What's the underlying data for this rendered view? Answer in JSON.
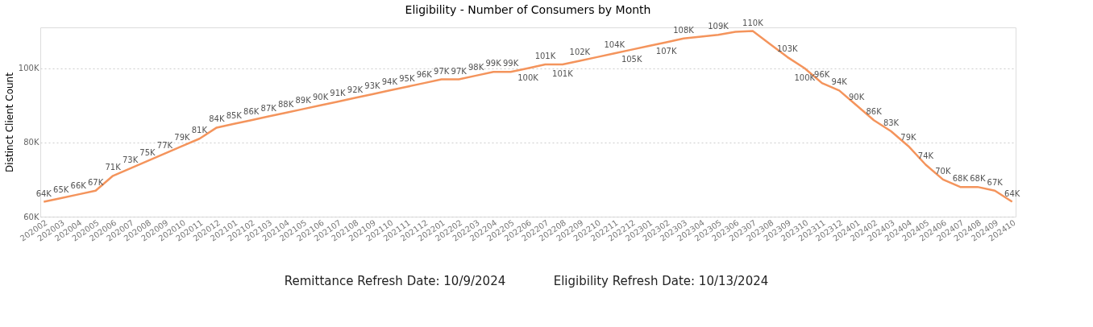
{
  "chart_data": {
    "type": "line",
    "title": "Eligibility - Number of Consumers by Month",
    "ylabel": "Distinct Client Count",
    "categories": [
      "202002",
      "202003",
      "202004",
      "202005",
      "202006",
      "202007",
      "202008",
      "202009",
      "202010",
      "202011",
      "202012",
      "202101",
      "202102",
      "202103",
      "202104",
      "202105",
      "202106",
      "202107",
      "202108",
      "202109",
      "202110",
      "202111",
      "202112",
      "202201",
      "202202",
      "202203",
      "202204",
      "202205",
      "202206",
      "202207",
      "202208",
      "202209",
      "202210",
      "202211",
      "202212",
      "202301",
      "202302",
      "202303",
      "202304",
      "202305",
      "202306",
      "202307",
      "202308",
      "202309",
      "202310",
      "202311",
      "202312",
      "202401",
      "202402",
      "202403",
      "202404",
      "202405",
      "202406",
      "202407",
      "202408",
      "202409",
      "202410"
    ],
    "series": [
      {
        "color": "#f4945c",
        "values": [
          64000,
          65000,
          66000,
          67000,
          71000,
          73000,
          75000,
          77000,
          79000,
          81000,
          84000,
          85000,
          86000,
          87000,
          88000,
          89000,
          90000,
          91000,
          92000,
          93000,
          94000,
          95000,
          96000,
          97000,
          97000,
          98000,
          99000,
          99000,
          100000,
          101000,
          101000,
          102000,
          103000,
          104000,
          105000,
          106000,
          107000,
          108000,
          108500,
          109000,
          109800,
          110000,
          106500,
          103000,
          100000,
          96000,
          94000,
          90000,
          86000,
          83000,
          79000,
          74000,
          70000,
          68000,
          68000,
          67000,
          64000
        ],
        "value_labels": [
          "64K",
          "65K",
          "66K",
          "67K",
          "71K",
          "73K",
          "75K",
          "77K",
          "79K",
          "81K",
          "84K",
          "85K",
          "86K",
          "87K",
          "88K",
          "89K",
          "90K",
          "91K",
          "92K",
          "93K",
          "94K",
          "95K",
          "96K",
          "97K",
          "97K",
          "98K",
          "99K",
          "99K",
          "100K",
          "101K",
          "101K",
          "102K",
          null,
          "104K",
          "105K",
          null,
          "107K",
          "108K",
          null,
          "109K",
          null,
          "110K",
          null,
          "103K",
          "100K",
          "96K",
          "94K",
          "90K",
          "86K",
          "83K",
          "79K",
          "74K",
          "70K",
          "68K",
          "68K",
          "67K",
          "64K"
        ]
      }
    ],
    "ylim": [
      60000,
      111000
    ],
    "yticks": [
      {
        "value": 60000,
        "label": "60K"
      },
      {
        "value": 80000,
        "label": "80K"
      },
      {
        "value": 100000,
        "label": "100K"
      }
    ],
    "grid": "y",
    "marker": "none",
    "line_style": "solid",
    "annotations": [
      "Remittance Refresh Date: 10/9/2024",
      "Eligibility Refresh Date: 10/13/2024"
    ]
  }
}
